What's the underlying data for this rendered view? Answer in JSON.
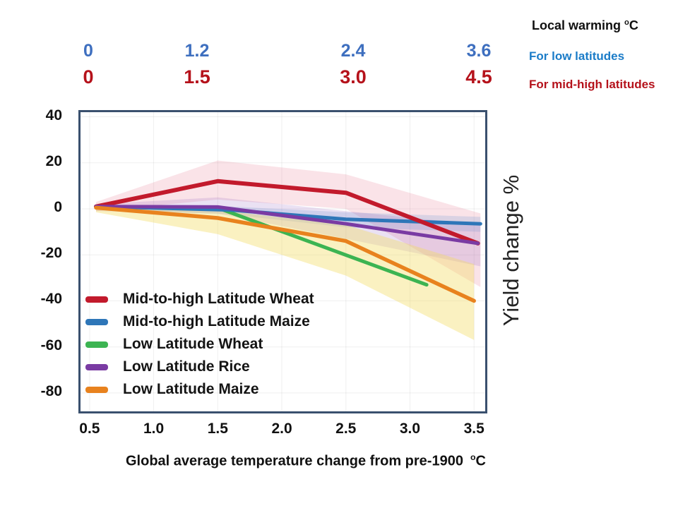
{
  "colors": {
    "header_black": "#111111",
    "low_lat_text_blue": "#1B7CC8",
    "low_lat_tick_blue": "#3E6FBF",
    "mid_high_red": "#B5121B",
    "plot_border": "#3A506E",
    "grid": "rgba(128,128,128,0.13)",
    "axis_text": "#111111"
  },
  "top_right": {
    "title": "Local warming",
    "title_sup": "o",
    "title_unit": "C",
    "low_label": "For low latitudes",
    "mid_high_label": "For mid-high latitudes"
  },
  "top_scales": {
    "low_ticks": [
      "0",
      "1.2",
      "2.4",
      "3.6"
    ],
    "mid_high_ticks": [
      "0",
      "1.5",
      "3.0",
      "4.5"
    ]
  },
  "chart_data": {
    "type": "line",
    "xlabel": "Global average temperature change from pre-1900",
    "xlabel_sup": "o",
    "xlabel_unit": "C",
    "ylabel": "Yield change %",
    "xlim": [
      0.429,
      3.587
    ],
    "ylim": [
      -88,
      42
    ],
    "x_ticks": [
      0.5,
      1.0,
      1.5,
      2.0,
      2.5,
      3.0,
      3.5
    ],
    "x_tick_labels": [
      "0.5",
      "1.0",
      "1.5",
      "2.0",
      "2.5",
      "3.0",
      "3.5"
    ],
    "y_ticks": [
      40,
      20,
      0,
      -20,
      -40,
      -60,
      -80
    ],
    "y_tick_labels": [
      "40",
      "20",
      "0",
      "-20",
      "-40",
      "-60",
      "-80"
    ],
    "grid": true,
    "legend_position": "inside lower-left",
    "series": [
      {
        "name": "Mid-to-high Latitude Wheat",
        "color": "#C21A2C",
        "width": 6,
        "z": 3,
        "points": [
          [
            0.55,
            1
          ],
          [
            1.5,
            12
          ],
          [
            2.5,
            7
          ],
          [
            3.53,
            -15
          ]
        ],
        "band": {
          "color": "rgba(225,100,130,0.18)",
          "upper": [
            [
              0.55,
              3
            ],
            [
              1.5,
              21
            ],
            [
              2.5,
              15
            ],
            [
              3.55,
              -2
            ]
          ],
          "lower": [
            [
              0.55,
              -1
            ],
            [
              1.5,
              4
            ],
            [
              2.5,
              0
            ],
            [
              3.55,
              -34
            ]
          ]
        }
      },
      {
        "name": "Mid-to-high Latitude Maize",
        "color": "#2E76B8",
        "width": 5,
        "z": 2,
        "points": [
          [
            0.55,
            1
          ],
          [
            1.6,
            -0.5
          ],
          [
            2.5,
            -4.5
          ],
          [
            3.55,
            -6.5
          ]
        ],
        "band": {
          "color": "rgba(90,145,210,0.20)",
          "upper": [
            [
              0.8,
              1.5
            ],
            [
              1.6,
              1
            ],
            [
              2.5,
              -1.5
            ],
            [
              3.55,
              -3.5
            ]
          ],
          "lower": [
            [
              0.8,
              -0.5
            ],
            [
              1.6,
              -2.5
            ],
            [
              2.5,
              -8
            ],
            [
              3.55,
              -10
            ]
          ]
        }
      },
      {
        "name": "Low Latitude Wheat",
        "color": "#3CB452",
        "width": 5,
        "z": 1,
        "points": [
          [
            1.52,
            0
          ],
          [
            3.13,
            -33
          ]
        ],
        "band": null
      },
      {
        "name": "Low Latitude Rice",
        "color": "#7A3BA3",
        "width": 5,
        "z": 4,
        "points": [
          [
            0.55,
            1
          ],
          [
            1.5,
            0.8
          ],
          [
            2.5,
            -6.5
          ],
          [
            3.53,
            -15
          ]
        ],
        "band": {
          "color": "rgba(150,105,195,0.20)",
          "upper": [
            [
              0.55,
              2
            ],
            [
              1.5,
              5
            ],
            [
              2.5,
              -1
            ],
            [
              3.55,
              -7
            ]
          ],
          "lower": [
            [
              0.55,
              -1
            ],
            [
              1.5,
              -2
            ],
            [
              2.5,
              -13
            ],
            [
              3.55,
              -25
            ]
          ]
        }
      },
      {
        "name": "Low Latitude Maize",
        "color": "#E8821E",
        "width": 5.5,
        "z": 5,
        "points": [
          [
            0.55,
            0.5
          ],
          [
            1.5,
            -4
          ],
          [
            2.5,
            -14
          ],
          [
            3.5,
            -40
          ]
        ],
        "band": {
          "color": "rgba(242,220,100,0.40)",
          "upper": [
            [
              0.55,
              1.5
            ],
            [
              1.5,
              -0.5
            ],
            [
              2.5,
              -7
            ],
            [
              3.5,
              -24
            ]
          ],
          "lower": [
            [
              0.55,
              -1.5
            ],
            [
              1.5,
              -11
            ],
            [
              2.5,
              -29
            ],
            [
              3.5,
              -57
            ]
          ]
        }
      }
    ]
  }
}
